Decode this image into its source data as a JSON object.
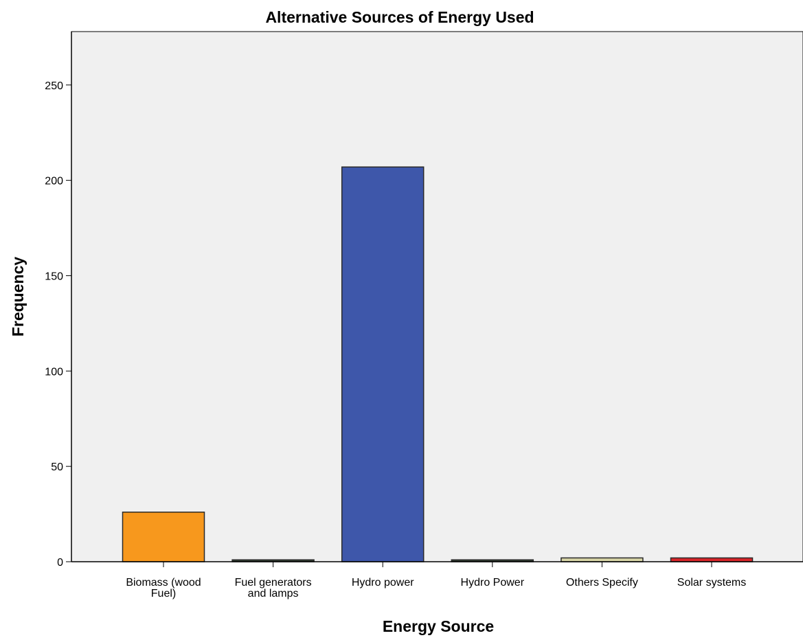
{
  "chart_data": {
    "type": "bar",
    "title": "Alternative Sources of Energy Used",
    "xlabel": "Energy Source",
    "ylabel": "Frequency",
    "ylim": [
      0,
      278
    ],
    "yticks": [
      0,
      50,
      100,
      150,
      200,
      250
    ],
    "grid": false,
    "categories": [
      [
        "Biomass (wood",
        "Fuel)"
      ],
      [
        "Fuel generators",
        "and lamps"
      ],
      [
        "Hydro power"
      ],
      [
        "Hydro Power"
      ],
      [
        "Others Specify"
      ],
      [
        "Solar systems"
      ]
    ],
    "values": [
      26,
      1,
      207,
      1,
      2,
      2
    ],
    "colors": [
      "#f7981d",
      "#2f3b2e",
      "#3e57aa",
      "#2f3b2e",
      "#d8d5a6",
      "#d9262a"
    ],
    "plot_background": "#f0f0f0"
  }
}
